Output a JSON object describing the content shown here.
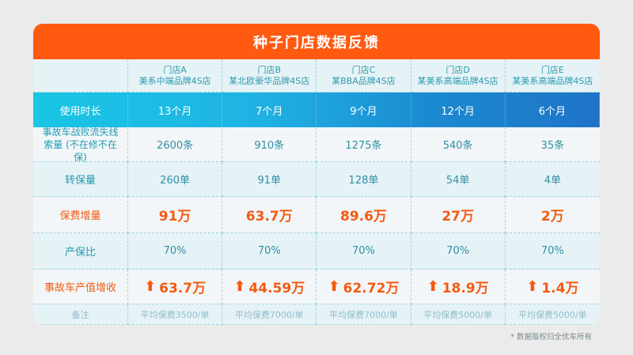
{
  "title": "种子门店数据反馈",
  "headers": [
    {
      "store": "门店A",
      "desc": "美系中端品牌4S店"
    },
    {
      "store": "门店B",
      "desc": "某北欧豪华品牌4S店"
    },
    {
      "store": "门店C",
      "desc": "某BBA品牌4S店"
    },
    {
      "store": "门店D",
      "desc": "某美系高端品牌4S店"
    },
    {
      "store": "门店E",
      "desc": "某美系高端品牌4S店"
    }
  ],
  "rows": {
    "usage": {
      "label": "使用时长",
      "values": [
        "13个月",
        "7个月",
        "9个月",
        "12个月",
        "6个月"
      ]
    },
    "leads": {
      "label": "事故车战败流失线索量 (不在修不在保)",
      "values": [
        "2600条",
        "910条",
        "1275条",
        "540条",
        "35条"
      ]
    },
    "transfer": {
      "label": "转保量",
      "values": [
        "260单",
        "91单",
        "128单",
        "54单",
        "4单"
      ]
    },
    "premium": {
      "label": "保费增量",
      "values": [
        "91万",
        "63.7万",
        "89.6万",
        "27万",
        "2万"
      ]
    },
    "ratio": {
      "label": "产保比",
      "values": [
        "70%",
        "70%",
        "70%",
        "70%",
        "70%"
      ]
    },
    "revenue": {
      "label": "事故车产值增收",
      "arrow": "⬆",
      "values": [
        "63.7万",
        "44.59万",
        "62.72万",
        "18.9万",
        "1.4万"
      ]
    },
    "note": {
      "label": "备注",
      "values": [
        "平均保费3500/单",
        "平均保费7000/单",
        "平均保费7000/单",
        "平均保费5000/单",
        "平均保费5000/单"
      ]
    }
  },
  "footer": "* 数据版权归全优车所有",
  "colors": {
    "orange": "#ff5a10",
    "blue_start": "#19c6e4",
    "blue_end": "#1f73c7",
    "teal_text": "#2b9ab0"
  }
}
